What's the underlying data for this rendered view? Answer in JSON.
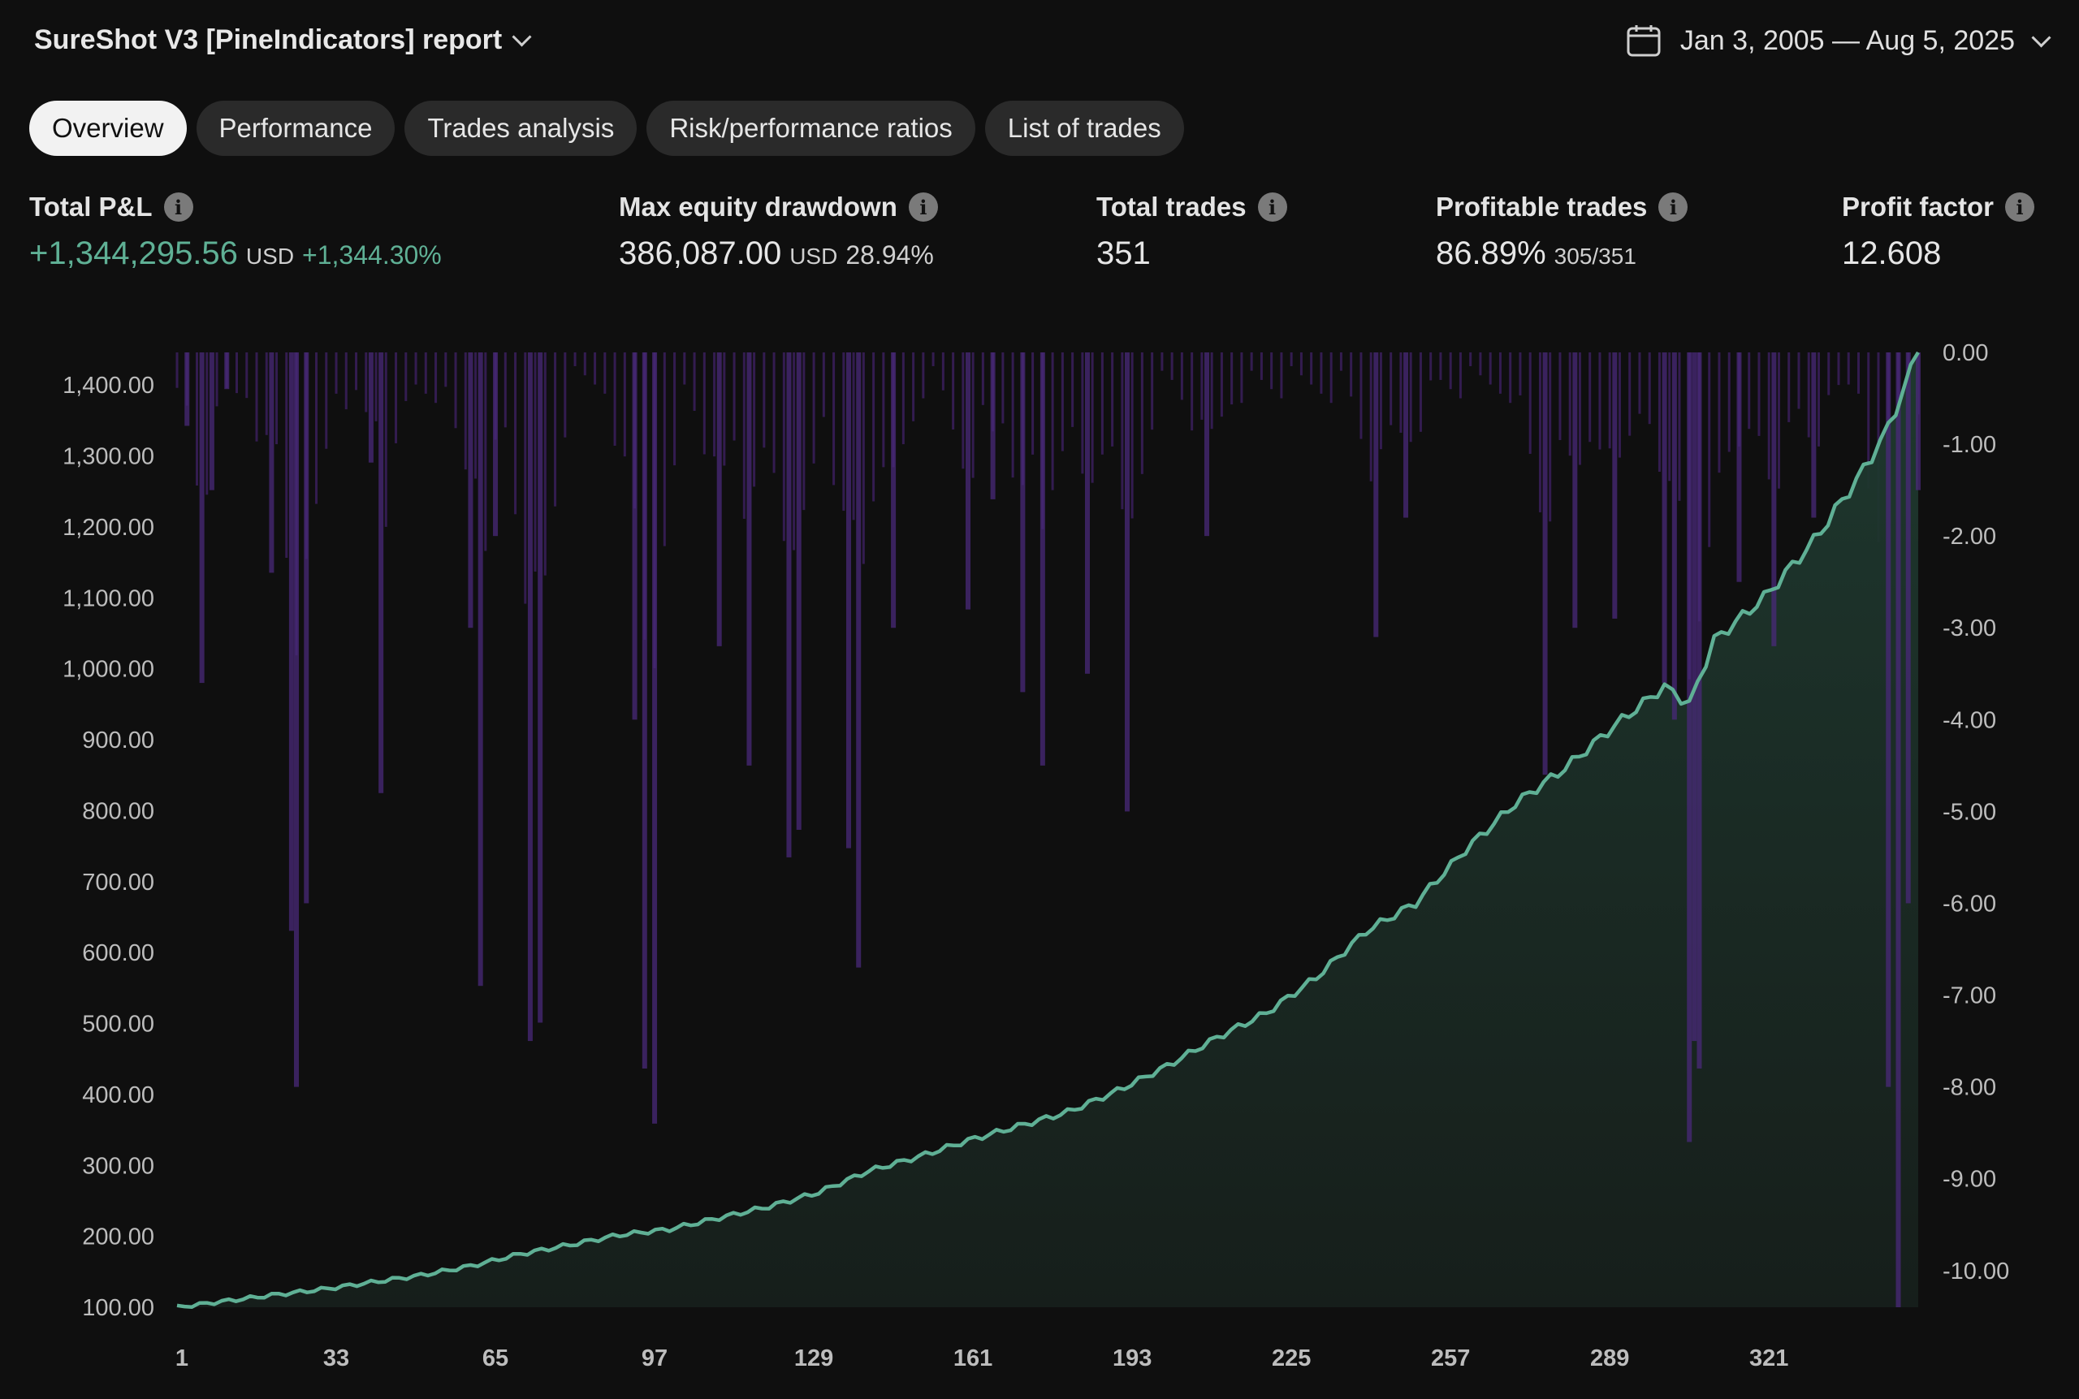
{
  "header": {
    "title": "SureShot V3 [PineIndicators] report",
    "date_range": "Jan 3, 2005 — Aug 5, 2025"
  },
  "tabs": [
    {
      "label": "Overview",
      "active": true
    },
    {
      "label": "Performance",
      "active": false
    },
    {
      "label": "Trades analysis",
      "active": false
    },
    {
      "label": "Risk/performance ratios",
      "active": false
    },
    {
      "label": "List of trades",
      "active": false
    }
  ],
  "stats": {
    "total_pnl": {
      "label": "Total P&L",
      "value": "+1,344,295.56",
      "unit": "USD",
      "pct": "+1,344.30%"
    },
    "max_drawdown": {
      "label": "Max equity drawdown",
      "value": "386,087.00",
      "unit": "USD",
      "pct": "28.94%"
    },
    "total_trades": {
      "label": "Total trades",
      "value": "351"
    },
    "profitable_trades": {
      "label": "Profitable trades",
      "value": "86.89%",
      "detail": "305/351"
    },
    "profit_factor": {
      "label": "Profit factor",
      "value": "12.608"
    }
  },
  "colors": {
    "equity_line": "#5fb095",
    "equity_fill": "#1f3a30",
    "drawdown_bar": "#3a1f5c",
    "background": "#0f0f0f"
  },
  "chart_data": {
    "type": "line",
    "title": "",
    "xlabel": "",
    "ylabel": "",
    "x_tick_labels": [
      "1",
      "33",
      "65",
      "97",
      "129",
      "161",
      "193",
      "225",
      "257",
      "289",
      "321"
    ],
    "xlim": [
      1,
      351
    ],
    "y_left_tick_labels": [
      "1,400.00",
      "1,300.00",
      "1,200.00",
      "1,100.00",
      "1,000.00",
      "900.00",
      "800.00",
      "700.00",
      "600.00",
      "500.00",
      "400.00",
      "300.00",
      "200.00",
      "100.00"
    ],
    "ylim_left": [
      100,
      1446
    ],
    "y_right_tick_labels": [
      "0.00",
      "-1.00",
      "-2.00",
      "-3.00",
      "-4.00",
      "-5.00",
      "-6.00",
      "-7.00",
      "-8.00",
      "-9.00",
      "-10.00"
    ],
    "ylim_right": [
      -10.4,
      0
    ],
    "series": [
      {
        "type": "area",
        "axis": "left",
        "x": [
          1,
          10,
          20,
          30,
          40,
          50,
          60,
          70,
          80,
          90,
          100,
          110,
          120,
          130,
          140,
          150,
          160,
          170,
          180,
          190,
          200,
          210,
          220,
          230,
          240,
          250,
          260,
          270,
          280,
          290,
          300,
          305,
          310,
          320,
          330,
          340,
          345,
          351
        ],
        "values": [
          100,
          108,
          117,
          125,
          135,
          145,
          158,
          175,
          188,
          202,
          210,
          226,
          242,
          262,
          292,
          312,
          335,
          355,
          375,
          405,
          440,
          480,
          515,
          565,
          630,
          670,
          745,
          810,
          860,
          920,
          975,
          950,
          1040,
          1100,
          1180,
          1280,
          1340,
          1446
        ]
      },
      {
        "type": "bar",
        "axis": "right",
        "x": [
          3,
          6,
          8,
          11,
          20,
          24,
          25,
          27,
          40,
          42,
          60,
          62,
          65,
          72,
          74,
          93,
          95,
          97,
          110,
          116,
          124,
          126,
          136,
          138,
          145,
          160,
          165,
          171,
          175,
          184,
          192,
          208,
          242,
          248,
          276,
          282,
          290,
          300,
          302,
          305,
          306,
          307,
          315,
          322,
          330,
          345,
          347,
          349,
          351
        ],
        "values": [
          -0.8,
          -3.6,
          -1.5,
          -0.4,
          -2.4,
          -6.3,
          -8.0,
          -6.0,
          -1.2,
          -4.8,
          -3.0,
          -6.9,
          -2.0,
          -7.5,
          -7.3,
          -4.0,
          -7.8,
          -8.4,
          -3.2,
          -4.5,
          -5.5,
          -5.2,
          -5.4,
          -6.7,
          -3.0,
          -2.8,
          -1.6,
          -3.7,
          -4.5,
          -3.5,
          -5.0,
          -2.0,
          -3.1,
          -1.8,
          -4.6,
          -3.0,
          -2.9,
          -3.6,
          -4.0,
          -8.6,
          -7.5,
          -7.8,
          -2.5,
          -3.2,
          -1.8,
          -8.0,
          -10.4,
          -6.0,
          -1.5
        ]
      }
    ],
    "grid": false,
    "legend": "none"
  }
}
